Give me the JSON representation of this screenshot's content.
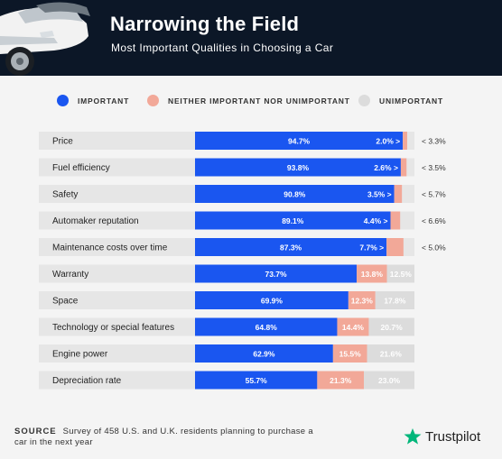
{
  "header": {
    "title": "Narrowing the Field",
    "subtitle": "Most Important Qualities in Choosing a Car"
  },
  "legend": {
    "important": "IMPORTANT",
    "neither": "NEITHER IMPORTANT NOR UNIMPORTANT",
    "unimportant": "UNIMPORTANT"
  },
  "colors": {
    "important": "#1a56f0",
    "neither": "#f2a898",
    "unimportant": "#dcdcdc",
    "row_bg": "#e6e6e6",
    "header_bg": "#0c1727",
    "brand_star": "#00b67a"
  },
  "chart_data": {
    "type": "bar",
    "orientation": "horizontal",
    "stacked": true,
    "categories": [
      "Price",
      "Fuel efficiency",
      "Safety",
      "Automaker reputation",
      "Maintenance costs over time",
      "Warranty",
      "Space",
      "Technology or special features",
      "Engine power",
      "Depreciation rate"
    ],
    "series": [
      {
        "name": "IMPORTANT",
        "values": [
          94.7,
          93.8,
          90.8,
          89.1,
          87.3,
          73.7,
          69.9,
          64.8,
          62.9,
          55.7
        ],
        "labels": [
          "94.7%",
          "93.8%",
          "90.8%",
          "89.1%",
          "87.3%",
          "73.7%",
          "69.9%",
          "64.8%",
          "62.9%",
          "55.7%"
        ]
      },
      {
        "name": "NEITHER IMPORTANT NOR UNIMPORTANT",
        "values": [
          2.0,
          2.6,
          3.5,
          4.4,
          7.7,
          13.8,
          12.3,
          14.4,
          15.5,
          21.3
        ],
        "labels": [
          "2.0% >",
          "2.6% >",
          "3.5% >",
          "4.4% >",
          "7.7% >",
          "13.8%",
          "12.3%",
          "14.4%",
          "15.5%",
          "21.3%"
        ]
      },
      {
        "name": "UNIMPORTANT",
        "values": [
          3.3,
          3.5,
          5.7,
          6.6,
          5.0,
          12.5,
          17.8,
          20.7,
          21.6,
          23.0
        ],
        "labels": [
          "< 3.3%",
          "< 3.5%",
          "< 5.7%",
          "< 6.6%",
          "< 5.0%",
          "12.5%",
          "17.8%",
          "20.7%",
          "21.6%",
          "23.0%"
        ]
      }
    ],
    "xlim": [
      0,
      100
    ]
  },
  "footer": {
    "source_label": "SOURCE",
    "source_text": "Survey of 458 U.S. and U.K. residents planning to purchase a car in the next year",
    "brand": "Trustpilot"
  }
}
